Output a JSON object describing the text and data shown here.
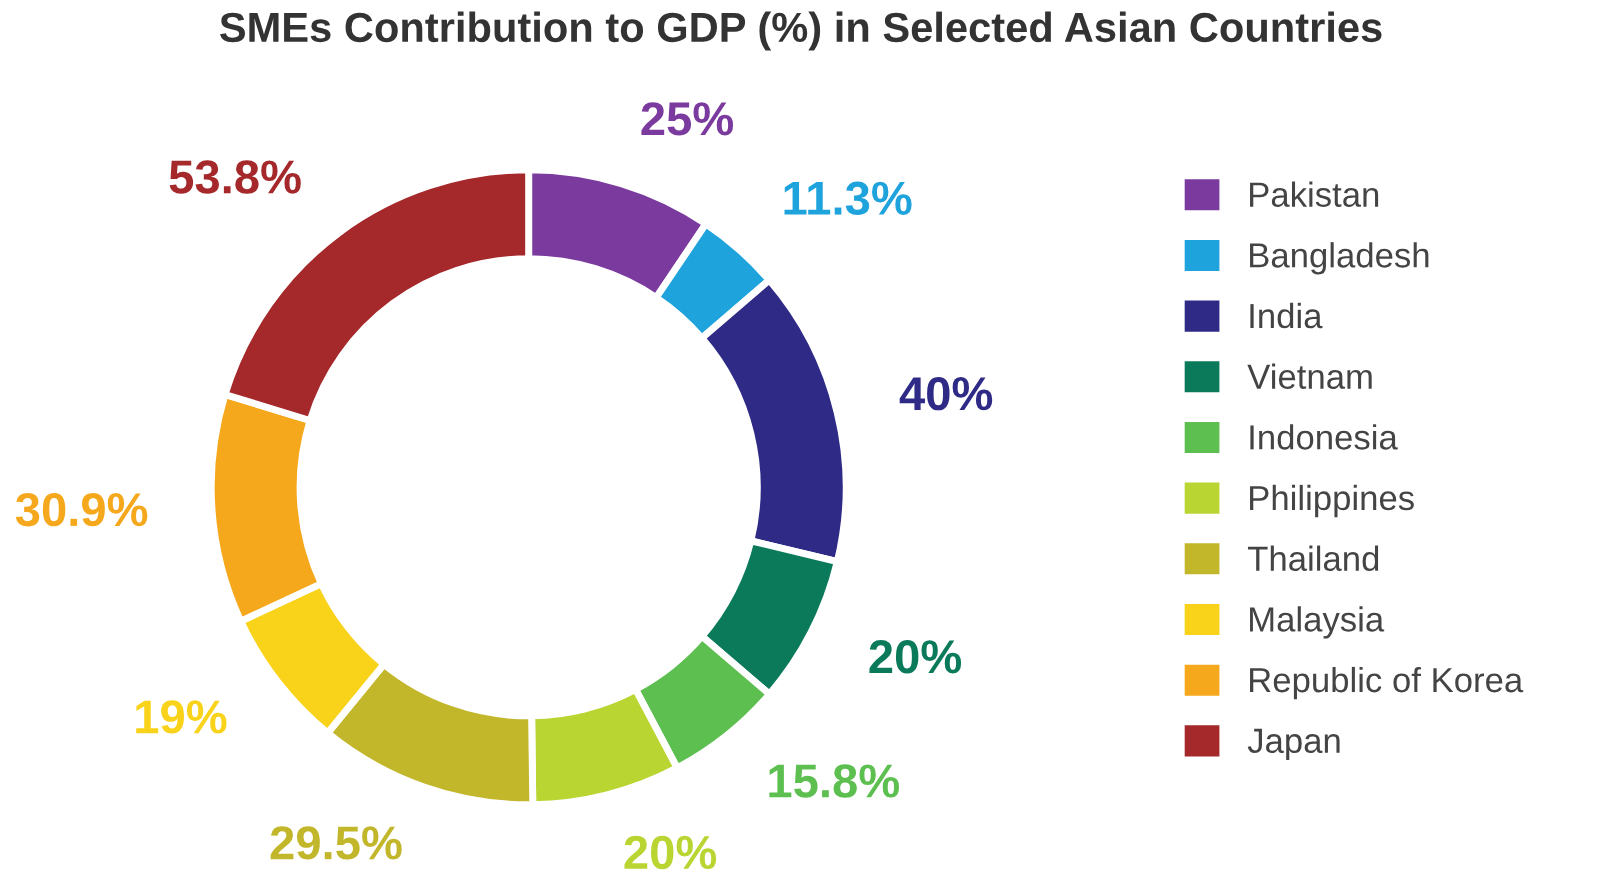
{
  "chart_data": {
    "type": "donut",
    "title": "SMEs Contribution to GDP (%) in Selected Asian Countries",
    "categories": [
      "Pakistan",
      "Bangladesh",
      "India",
      "Vietnam",
      "Indonesia",
      "Philippines",
      "Thailand",
      "Malaysia",
      "Republic of Korea",
      "Japan"
    ],
    "values": [
      25,
      11.3,
      40,
      20,
      15.8,
      20,
      29.5,
      19,
      30.9,
      53.8
    ],
    "colors": [
      "#7b3a9e",
      "#1fa3dc",
      "#2e2a86",
      "#0b7a5a",
      "#5cbf4f",
      "#b9d531",
      "#c2b62a",
      "#f9d21a",
      "#f6a81d",
      "#a5282a"
    ],
    "value_labels": [
      "25%",
      "11.3%",
      "40%",
      "20%",
      "15.8%",
      "20%",
      "29.5%",
      "19%",
      "30.9%",
      "53.8%"
    ],
    "legend": "right"
  }
}
